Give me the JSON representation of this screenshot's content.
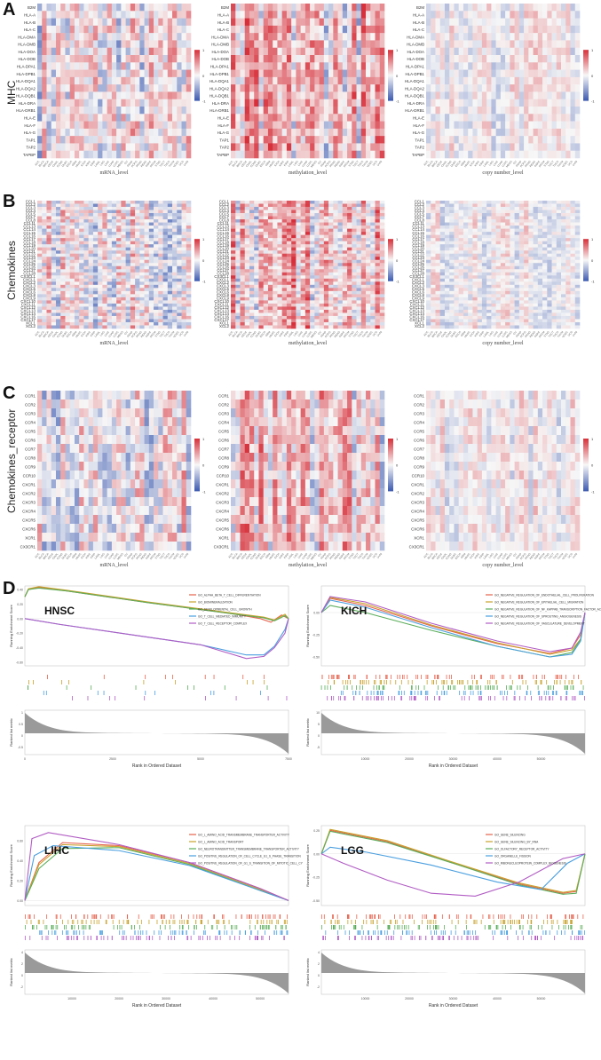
{
  "panels": {
    "A": {
      "letter": "A",
      "row_title": "MHC",
      "heatmaps": [
        {
          "x_label": "mRNA_level"
        },
        {
          "x_label": "methylation_level"
        },
        {
          "x_label": "copy number_level"
        }
      ],
      "genes": [
        "B2M",
        "HLA-A",
        "HLA-B",
        "HLA-C",
        "HLA-DMA",
        "HLA-DMB",
        "HLA-DOA",
        "HLA-DOB",
        "HLA-DPA1",
        "HLA-DPB1",
        "HLA-DQA1",
        "HLA-DQA2",
        "HLA-DQB1",
        "HLA-DRA",
        "HLA-DRB1",
        "HLA-E",
        "HLA-F",
        "HLA-G",
        "TAP1",
        "TAP2",
        "TAPBP"
      ]
    },
    "B": {
      "letter": "B",
      "row_title": "Chemokines",
      "heatmaps": [
        {
          "x_label": "mRNA_level"
        },
        {
          "x_label": "methylation_level"
        },
        {
          "x_label": "copy number_level"
        }
      ],
      "genes": [
        "CCL1",
        "CCL2",
        "CCL3",
        "CCL4",
        "CCL5",
        "CCL7",
        "CCL8",
        "CCL11",
        "CCL13",
        "CCL14",
        "CCL15",
        "CCL16",
        "CCL17",
        "CCL18",
        "CCL19",
        "CCL20",
        "CCL21",
        "CCL22",
        "CCL23",
        "CCL24",
        "CCL25",
        "CCL26",
        "CCL27",
        "CCL28",
        "CX3CL1",
        "CXCL1",
        "CXCL2",
        "CXCL3",
        "CXCL5",
        "CXCL6",
        "CXCL8",
        "CXCL9",
        "CXCL10",
        "CXCL11",
        "CXCL12",
        "CXCL13",
        "CXCL14",
        "CXCL16",
        "CXCL17",
        "XCL1",
        "XCL2"
      ]
    },
    "C": {
      "letter": "C",
      "row_title": "Chemokines_receptor",
      "heatmaps": [
        {
          "x_label": "mRNA_level"
        },
        {
          "x_label": "methylation_level"
        },
        {
          "x_label": "copy number_level"
        }
      ],
      "genes": [
        "CCR1",
        "CCR2",
        "CCR3",
        "CCR4",
        "CCR5",
        "CCR6",
        "CCR7",
        "CCR8",
        "CCR9",
        "CCR10",
        "CXCR1",
        "CXCR2",
        "CXCR3",
        "CXCR4",
        "CXCR5",
        "CXCR6",
        "XCR1",
        "CX3CR1"
      ]
    },
    "D": {
      "letter": "D"
    }
  },
  "colorbar": {
    "ticks": [
      "1",
      "0",
      "-1"
    ],
    "high_color": "#d7303a",
    "mid_color": "#f7f7f7",
    "low_color": "#3b59b0"
  },
  "tcga_cancers": [
    "ACC",
    "BLCA",
    "BRCA",
    "CESC",
    "CHOL",
    "COAD",
    "DLBC",
    "ESCA",
    "GBM",
    "HNSC",
    "KICH",
    "KIRC",
    "KIRP",
    "LAML",
    "LGG",
    "LIHC",
    "LUAD",
    "LUSC",
    "MESO",
    "OV",
    "PAAD",
    "PCPG",
    "PRAD",
    "READ",
    "SARC",
    "SKCM",
    "STAD",
    "TGCT",
    "THCA",
    "THYM",
    "UCEC",
    "UCS",
    "UVM"
  ],
  "chart_data": [
    {
      "type": "heatmap",
      "panel": "A",
      "title": "MHC",
      "facets": [
        "mRNA_level",
        "methylation_level",
        "copy number_level"
      ],
      "value_range": [
        -1,
        1
      ],
      "rows": "panels.A.genes",
      "columns": "tcga_cancers"
    },
    {
      "type": "heatmap",
      "panel": "B",
      "title": "Chemokines",
      "facets": [
        "mRNA_level",
        "methylation_level",
        "copy number_level"
      ],
      "value_range": [
        -1,
        1
      ],
      "rows": "panels.B.genes",
      "columns": "tcga_cancers"
    },
    {
      "type": "heatmap",
      "panel": "C",
      "title": "Chemokines_receptor",
      "facets": [
        "mRNA_level",
        "methylation_level",
        "copy number_level"
      ],
      "value_range": [
        -1,
        1
      ],
      "rows": "panels.C.genes",
      "columns": "tcga_cancers"
    },
    {
      "type": "line",
      "name": "HNSC",
      "ylabel": "Running Enrichment Score",
      "xlabel": "Rank in Ordered Dataset",
      "ylabel2": "Ranked list metric",
      "xlim": [
        0,
        7500
      ],
      "ylim": [
        -0.65,
        0.45
      ],
      "x_ticks": [
        0,
        2500,
        5000,
        7500
      ],
      "y_ticks": [
        0.4,
        0.2,
        0.0,
        -0.2,
        -0.4,
        -0.6
      ],
      "metric_ticks": [
        1.0,
        0.5,
        0.0,
        -0.5
      ],
      "series": [
        {
          "name": "GO_ALPHA_BETA_T_CELL_DIFFERENTIATION",
          "color": "#e6624d",
          "x": [
            0,
            100,
            400,
            1200,
            3500,
            6000,
            6700,
            7000,
            7300,
            7500
          ],
          "y": [
            0.3,
            0.4,
            0.43,
            0.38,
            0.22,
            0.06,
            0.0,
            -0.05,
            0.05,
            0.0
          ]
        },
        {
          "name": "GO_BIOMINERALIZATION",
          "color": "#c8a12a",
          "x": [
            0,
            100,
            400,
            1200,
            3500,
            6000,
            6800,
            7100,
            7400,
            7500
          ],
          "y": [
            0.3,
            0.41,
            0.44,
            0.39,
            0.23,
            0.07,
            0.02,
            -0.02,
            0.06,
            0.0
          ]
        },
        {
          "name": "GO_DEVELOPMENTAL_CELL_GROWTH",
          "color": "#5aad5a",
          "x": [
            0,
            100,
            400,
            1200,
            3500,
            6000,
            6800,
            7100,
            7400,
            7500
          ],
          "y": [
            0.3,
            0.4,
            0.42,
            0.38,
            0.22,
            0.06,
            0.01,
            -0.03,
            0.04,
            0.0
          ]
        },
        {
          "name": "GO_T_CELL_MEDIATED_IMMUNITY",
          "color": "#4a9fe0",
          "x": [
            0,
            1000,
            3000,
            5000,
            6300,
            6800,
            7100,
            7400,
            7500
          ],
          "y": [
            0.0,
            -0.08,
            -0.22,
            -0.36,
            -0.5,
            -0.5,
            -0.38,
            -0.15,
            0.0
          ]
        },
        {
          "name": "GO_T_CELL_RECEPTOR_COMPLEX",
          "color": "#b15cc4",
          "x": [
            0,
            1000,
            3000,
            5000,
            6300,
            6800,
            7100,
            7400,
            7500
          ],
          "y": [
            0.0,
            -0.08,
            -0.22,
            -0.36,
            -0.55,
            -0.52,
            -0.4,
            -0.2,
            0.0
          ]
        }
      ]
    },
    {
      "type": "line",
      "name": "KICH",
      "ylabel": "Running Enrichment Score",
      "xlabel": "Rank in Ordered Dataset",
      "ylabel2": "Ranked list metric",
      "xlim": [
        0,
        60000
      ],
      "ylim": [
        -0.6,
        0.3
      ],
      "x_ticks": [
        10000,
        20000,
        30000,
        40000,
        50000
      ],
      "y_ticks": [
        0.0,
        -0.25,
        -0.5
      ],
      "metric_ticks": [
        10,
        5,
        0,
        -5
      ],
      "series": [
        {
          "name": "GO_NEGATIVE_REGULATION_OF_ENDOTHELIAL_CELL_PROLIFERATION",
          "color": "#e6624d",
          "x": [
            0,
            2000,
            10000,
            25000,
            40000,
            52000,
            57000,
            59000,
            60000
          ],
          "y": [
            0.0,
            0.16,
            0.08,
            -0.15,
            -0.35,
            -0.46,
            -0.4,
            -0.25,
            0.0
          ]
        },
        {
          "name": "GO_NEGATIVE_REGULATION_OF_EPITHELIAL_CELL_MIGRATION",
          "color": "#c8a12a",
          "x": [
            0,
            2000,
            10000,
            25000,
            40000,
            52000,
            57000,
            59000,
            60000
          ],
          "y": [
            0.0,
            0.17,
            0.1,
            -0.14,
            -0.34,
            -0.47,
            -0.42,
            -0.3,
            0.0
          ]
        },
        {
          "name": "GO_NEGATIVE_REGULATION_OF_NF_KAPPAB_TRANSCRIPTION_FACTOR_AC",
          "color": "#5aad5a",
          "x": [
            0,
            2000,
            10000,
            25000,
            40000,
            52000,
            57000,
            59000,
            60000
          ],
          "y": [
            0.0,
            0.08,
            0.0,
            -0.2,
            -0.38,
            -0.5,
            -0.45,
            -0.3,
            0.0
          ]
        },
        {
          "name": "GO_NEGATIVE_REGULATION_OF_SPROUTING_ANGIOGENESIS",
          "color": "#4a9fe0",
          "x": [
            0,
            2000,
            10000,
            25000,
            40000,
            52000,
            57000,
            59000,
            60000
          ],
          "y": [
            0.0,
            0.14,
            0.06,
            -0.17,
            -0.38,
            -0.5,
            -0.47,
            -0.32,
            0.0
          ]
        },
        {
          "name": "GO_NEGATIVE_REGULATION_OF_VASCULATURE_DEVELOPMENT",
          "color": "#b15cc4",
          "x": [
            0,
            2000,
            10000,
            25000,
            40000,
            52000,
            57000,
            59000,
            60000
          ],
          "y": [
            0.0,
            0.18,
            0.12,
            -0.12,
            -0.32,
            -0.44,
            -0.4,
            -0.22,
            0.0
          ]
        }
      ]
    },
    {
      "type": "line",
      "name": "LIHC",
      "ylabel": "Running Enrichment Score",
      "xlabel": "Rank in Ordered Dataset",
      "ylabel2": "Ranked list metric",
      "xlim": [
        0,
        56000
      ],
      "ylim": [
        -0.05,
        0.75
      ],
      "x_ticks": [
        10000,
        20000,
        30000,
        40000,
        50000
      ],
      "y_ticks": [
        0.6,
        0.4,
        0.2,
        0.0
      ],
      "metric_ticks": [
        4,
        2,
        0,
        -2
      ],
      "series": [
        {
          "name": "GO_L_AMINO_ACID_TRANSMEMBRANE_TRANSPORTER_ACTIVITY",
          "color": "#e6624d",
          "x": [
            0,
            3000,
            8000,
            20000,
            35000,
            50000,
            56000
          ],
          "y": [
            0.0,
            0.38,
            0.58,
            0.55,
            0.38,
            0.12,
            0.0
          ]
        },
        {
          "name": "GO_L_AMINO_ACID_TRANSPORT",
          "color": "#c8a12a",
          "x": [
            0,
            3000,
            8000,
            20000,
            35000,
            50000,
            56000
          ],
          "y": [
            0.0,
            0.36,
            0.56,
            0.54,
            0.37,
            0.11,
            0.0
          ]
        },
        {
          "name": "GO_NEUROTRANSMITTER_TRANSMEMBRANE_TRANSPORTER_ACTIVITY",
          "color": "#5aad5a",
          "x": [
            0,
            3000,
            8000,
            20000,
            35000,
            50000,
            56000
          ],
          "y": [
            0.0,
            0.32,
            0.52,
            0.53,
            0.36,
            0.1,
            0.0
          ]
        },
        {
          "name": "GO_POSITIVE_REGULATION_OF_CELL_CYCLE_G1_S_PHASE_TRANSITION",
          "color": "#4a9fe0",
          "x": [
            0,
            2000,
            6000,
            20000,
            35000,
            50000,
            56000
          ],
          "y": [
            0.0,
            0.45,
            0.55,
            0.5,
            0.35,
            0.1,
            0.0
          ]
        },
        {
          "name": "GO_POSITIVE_REGULATION_OF_G1_S_TRANSITION_OF_MITOTIC_CELL_CY",
          "color": "#b15cc4",
          "x": [
            0,
            1500,
            5000,
            20000,
            35000,
            50000,
            56000
          ],
          "y": [
            0.0,
            0.62,
            0.68,
            0.56,
            0.38,
            0.12,
            0.0
          ]
        }
      ]
    },
    {
      "type": "line",
      "name": "LGG",
      "ylabel": "Running Enrichment Score",
      "xlabel": "Rank in Ordered Dataset",
      "ylabel2": "Ranked list metric",
      "xlim": [
        0,
        60000
      ],
      "ylim": [
        -0.55,
        0.3
      ],
      "x_ticks": [
        10000,
        20000,
        30000,
        40000,
        50000
      ],
      "y_ticks": [
        0.25,
        0.0,
        -0.25,
        -0.5
      ],
      "metric_ticks": [
        4,
        2,
        0,
        -2
      ],
      "series": [
        {
          "name": "GO_GENE_SILENCING",
          "color": "#e6624d",
          "x": [
            0,
            2000,
            15000,
            30000,
            45000,
            55000,
            58000,
            60000
          ],
          "y": [
            0.0,
            0.25,
            0.13,
            -0.1,
            -0.32,
            -0.42,
            -0.4,
            0.0
          ]
        },
        {
          "name": "GO_GENE_SILENCING_BY_RNA",
          "color": "#c8a12a",
          "x": [
            0,
            2000,
            15000,
            30000,
            45000,
            55000,
            58000,
            60000
          ],
          "y": [
            0.0,
            0.26,
            0.14,
            -0.09,
            -0.31,
            -0.41,
            -0.39,
            0.0
          ]
        },
        {
          "name": "GO_OLFACTORY_RECEPTOR_ACTIVITY",
          "color": "#5aad5a",
          "x": [
            0,
            2000,
            15000,
            30000,
            45000,
            55000,
            58000,
            60000
          ],
          "y": [
            0.0,
            0.24,
            0.12,
            -0.1,
            -0.33,
            -0.43,
            -0.42,
            0.0
          ]
        },
        {
          "name": "GO_ORGANELLE_FISSION",
          "color": "#4a9fe0",
          "x": [
            0,
            2000,
            10000,
            25000,
            40000,
            50000,
            56000,
            60000
          ],
          "y": [
            0.0,
            0.07,
            0.02,
            -0.12,
            -0.3,
            -0.38,
            -0.1,
            0.0
          ]
        },
        {
          "name": "GO_RIBONUCLEOPROTEIN_COMPLEX_BIOGENESIS",
          "color": "#b15cc4",
          "x": [
            0,
            5000,
            15000,
            25000,
            35000,
            45000,
            55000,
            60000
          ],
          "y": [
            0.0,
            -0.1,
            -0.28,
            -0.42,
            -0.45,
            -0.3,
            -0.05,
            0.0
          ]
        }
      ]
    }
  ]
}
